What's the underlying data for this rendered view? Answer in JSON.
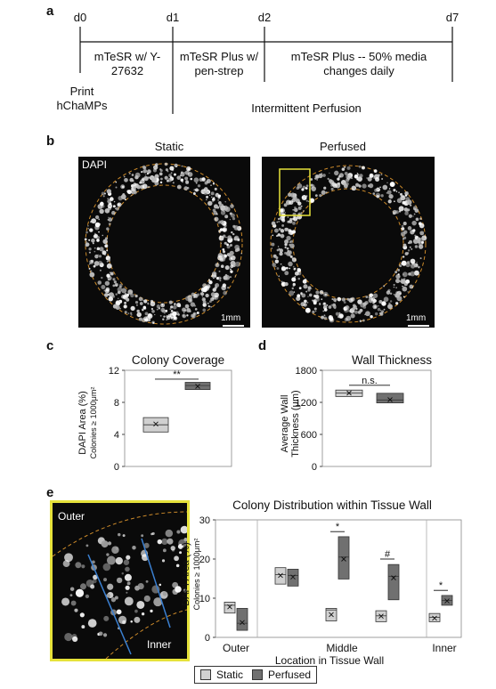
{
  "panel_a": {
    "letter": "a",
    "days": [
      "d0",
      "d1",
      "d2",
      "d7"
    ],
    "media_1": "mTeSR w/ Y-27632",
    "media_2": "mTeSR Plus w/ pen-strep",
    "media_3": "mTeSR Plus -- 50% media changes daily",
    "print_label": "Print hChaMPs",
    "perfusion_label": "Intermittent Perfusion"
  },
  "panel_b": {
    "letter": "b",
    "title_static": "Static",
    "title_perfused": "Perfused",
    "stain": "DAPI",
    "scale_static": "1mm",
    "scale_perfused": "1mm"
  },
  "panel_c": {
    "letter": "c",
    "title": "Colony Coverage",
    "ylabel_main": "DAPI Area (%)",
    "ylabel_sub": "Colonies ≥ 1000μm²",
    "significance": "**"
  },
  "panel_d": {
    "letter": "d",
    "title": "Wall Thickness",
    "ylabel_main": "Average Wall",
    "ylabel_sub": "Thickness (μm)",
    "significance": "n.s."
  },
  "panel_e": {
    "letter": "e",
    "title": "Colony Distribution within Tissue Wall",
    "outer_label": "Outer",
    "inner_label": "Inner",
    "ylabel_main": "DAPI Area (%)",
    "ylabel_sub": "Colonies ≥ 1000μm²",
    "xlabel": "Location in Tissue Wall",
    "sig_middle": "*",
    "sig_middle2": "#",
    "sig_inner": "*",
    "legend_static": "Static",
    "legend_perfused": "Perfused"
  },
  "colors": {
    "static": "#d0d0d0",
    "perfused": "#707070",
    "outline": "#cc8a2a",
    "highlight": "#e6e23a"
  },
  "chart_data": [
    {
      "type": "box",
      "title": "Colony Coverage",
      "ylabel": "DAPI Area (%) Colonies ≥ 1000μm²",
      "ylim": [
        0,
        12
      ],
      "yticks": [
        0,
        4,
        8,
        12
      ],
      "series": [
        {
          "name": "Static",
          "q1": 4.3,
          "q3": 6.1,
          "median": 5.2,
          "mean": 5.3
        },
        {
          "name": "Perfused",
          "q1": 9.6,
          "q3": 10.5,
          "median": 10.1,
          "mean": 10.0
        }
      ]
    },
    {
      "type": "box",
      "title": "Wall Thickness",
      "ylabel": "Average Wall Thickness (μm)",
      "ylim": [
        0,
        1800
      ],
      "yticks": [
        0,
        600,
        1200,
        1800
      ],
      "series": [
        {
          "name": "Static",
          "q1": 1310,
          "q3": 1430,
          "median": 1375,
          "mean": 1375
        },
        {
          "name": "Perfused",
          "q1": 1190,
          "q3": 1370,
          "median": 1245,
          "mean": 1250
        }
      ]
    },
    {
      "type": "box",
      "title": "Colony Distribution within Tissue Wall",
      "xlabel": "Location in Tissue Wall",
      "ylabel": "DAPI Area (%) Colonies ≥ 1000μm²",
      "ylim": [
        0,
        30
      ],
      "yticks": [
        0,
        10,
        20,
        30
      ],
      "categories": [
        "Outer",
        "Middle",
        "Inner"
      ],
      "series": [
        {
          "name": "Static",
          "boxes": [
            {
              "slot": 0,
              "q1": 6.2,
              "q3": 9.0,
              "median": 8.2,
              "mean": 7.8
            },
            {
              "slot": 1,
              "q1": 13.6,
              "q3": 17.8,
              "median": 16.0,
              "mean": 15.8
            },
            {
              "slot": 2,
              "q1": 4.2,
              "q3": 7.4,
              "median": 7.0,
              "mean": 5.8
            },
            {
              "slot": 3,
              "q1": 4.0,
              "q3": 6.8,
              "median": 5.5,
              "mean": 5.4
            },
            {
              "slot": 4,
              "q1": 4.0,
              "q3": 6.1,
              "median": 5.1,
              "mean": 4.9
            }
          ]
        },
        {
          "name": "Perfused",
          "boxes": [
            {
              "slot": 0,
              "q1": 1.8,
              "q3": 7.4,
              "median": 3.6,
              "mean": 3.8
            },
            {
              "slot": 1,
              "q1": 13.1,
              "q3": 17.4,
              "median": 15.8,
              "mean": 15.4
            },
            {
              "slot": 2,
              "q1": 14.9,
              "q3": 25.7,
              "median": 20.5,
              "mean": 20.0
            },
            {
              "slot": 3,
              "q1": 9.6,
              "q3": 18.6,
              "median": 15.6,
              "mean": 15.2
            },
            {
              "slot": 4,
              "q1": 8.2,
              "q3": 10.7,
              "median": 9.4,
              "mean": 9.3
            }
          ]
        }
      ]
    }
  ]
}
